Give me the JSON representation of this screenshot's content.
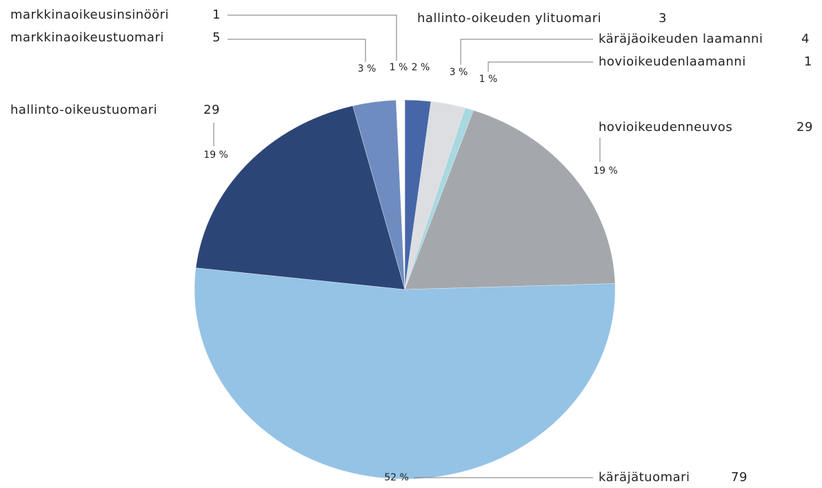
{
  "chart_data": {
    "type": "pie",
    "categories": [
      "hallinto-oikeuden ylituomari",
      "käräjäoikeuden laamanni",
      "hovioikeudenlaamanni",
      "hovioikeudenneuvos",
      "käräjätuomari",
      "hallinto-oikeustuomari",
      "markkinaoikeustuomari",
      "markkinaoikeusinsinööri"
    ],
    "values": [
      3,
      4,
      1,
      29,
      79,
      29,
      5,
      1
    ],
    "percent_labels": [
      "2 %",
      "3 %",
      "1 %",
      "19 %",
      "52 %",
      "19 %",
      "3 %",
      "1 %"
    ],
    "colors": [
      "#4666a8",
      "#dcdee2",
      "#a8d8e0",
      "#a4a8ad",
      "#94c3e6",
      "#2c4577",
      "#6f8cc0",
      "#ffffff"
    ]
  }
}
